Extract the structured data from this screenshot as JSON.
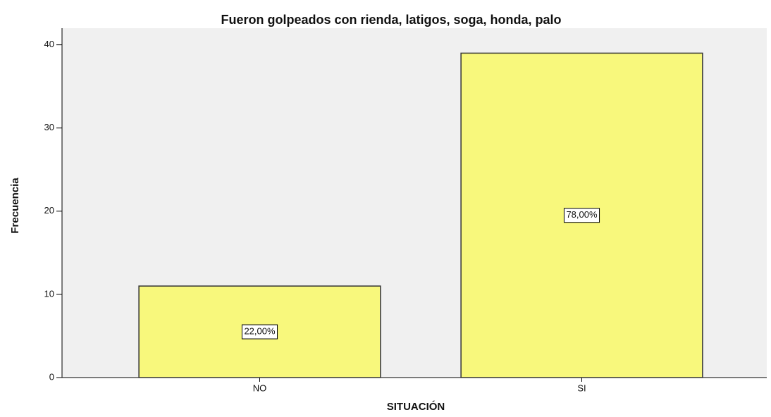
{
  "chart_data": {
    "type": "bar",
    "title": "Fueron golpeados con rienda, latigos, soga, honda, palo",
    "x_label": "SITUACIÓN",
    "y_label": "Frecuencia",
    "categories": [
      "NO",
      "SI"
    ],
    "values": [
      11,
      39
    ],
    "percent_labels": [
      "22,00%",
      "78,00%"
    ],
    "color": "#f8f87c",
    "ylim": [
      0,
      42
    ],
    "yticks": [
      0,
      10,
      20,
      30,
      40
    ],
    "grid": false
  }
}
